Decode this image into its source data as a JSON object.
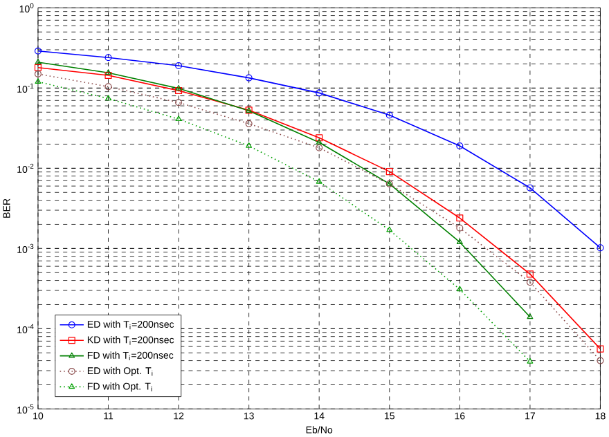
{
  "chart_data": {
    "type": "line",
    "xlabel": "Eb/No",
    "ylabel": "BER",
    "x": [
      10,
      11,
      12,
      13,
      14,
      15,
      16,
      17,
      18
    ],
    "series": [
      {
        "name": "ED with T$_{i}$=200nsec",
        "color": "#0000ff",
        "marker": "circle",
        "line_style": "solid",
        "values": [
          0.29,
          0.24,
          0.19,
          0.134,
          0.087,
          0.046,
          0.019,
          0.0057,
          0.00102
        ]
      },
      {
        "name": "KD with T$_{i}$=200nsec",
        "color": "#ff0000",
        "marker": "square",
        "line_style": "solid",
        "values": [
          0.18,
          0.144,
          0.093,
          0.053,
          0.024,
          0.0091,
          0.0024,
          0.00048,
          5.6e-05
        ]
      },
      {
        "name": "FD with T$_{i}$=200nsec",
        "color": "#008000",
        "marker": "triangle",
        "line_style": "solid",
        "values": [
          0.21,
          0.155,
          0.099,
          0.052,
          0.021,
          0.0064,
          0.0012,
          0.00014,
          null
        ]
      },
      {
        "name": "ED with Opt. T$_{i}$",
        "color": "#8b4c4c",
        "marker": "circle",
        "line_style": "dotted",
        "values": [
          0.15,
          0.104,
          0.066,
          0.036,
          0.018,
          0.0064,
          0.0018,
          0.00038,
          4e-05
        ]
      },
      {
        "name": "FD with Opt. T$_{i}$",
        "color": "#00a000",
        "marker": "triangle",
        "line_style": "dotted",
        "values": [
          0.12,
          0.074,
          0.041,
          0.019,
          0.0068,
          0.0017,
          0.00031,
          3.9e-05,
          null
        ]
      }
    ],
    "log": "y",
    "grid": true,
    "legend": "bottom left",
    "xlim": [
      10,
      18
    ],
    "xticks": [
      10,
      11,
      12,
      13,
      14,
      15,
      16,
      17,
      18
    ],
    "ylim": [
      1e-05,
      1
    ],
    "yticks": [
      {
        "value": 1e-05,
        "label": "10$^{-5}$"
      },
      {
        "value": 0.0001,
        "label": "10$^{-4}$"
      },
      {
        "value": 0.001,
        "label": "10$^{-3}$"
      },
      {
        "value": 0.01,
        "label": "10$^{-2}$"
      },
      {
        "value": 0.1,
        "label": "10$^{-1}$"
      },
      {
        "value": 1,
        "label": "10$^{0}$"
      }
    ]
  }
}
